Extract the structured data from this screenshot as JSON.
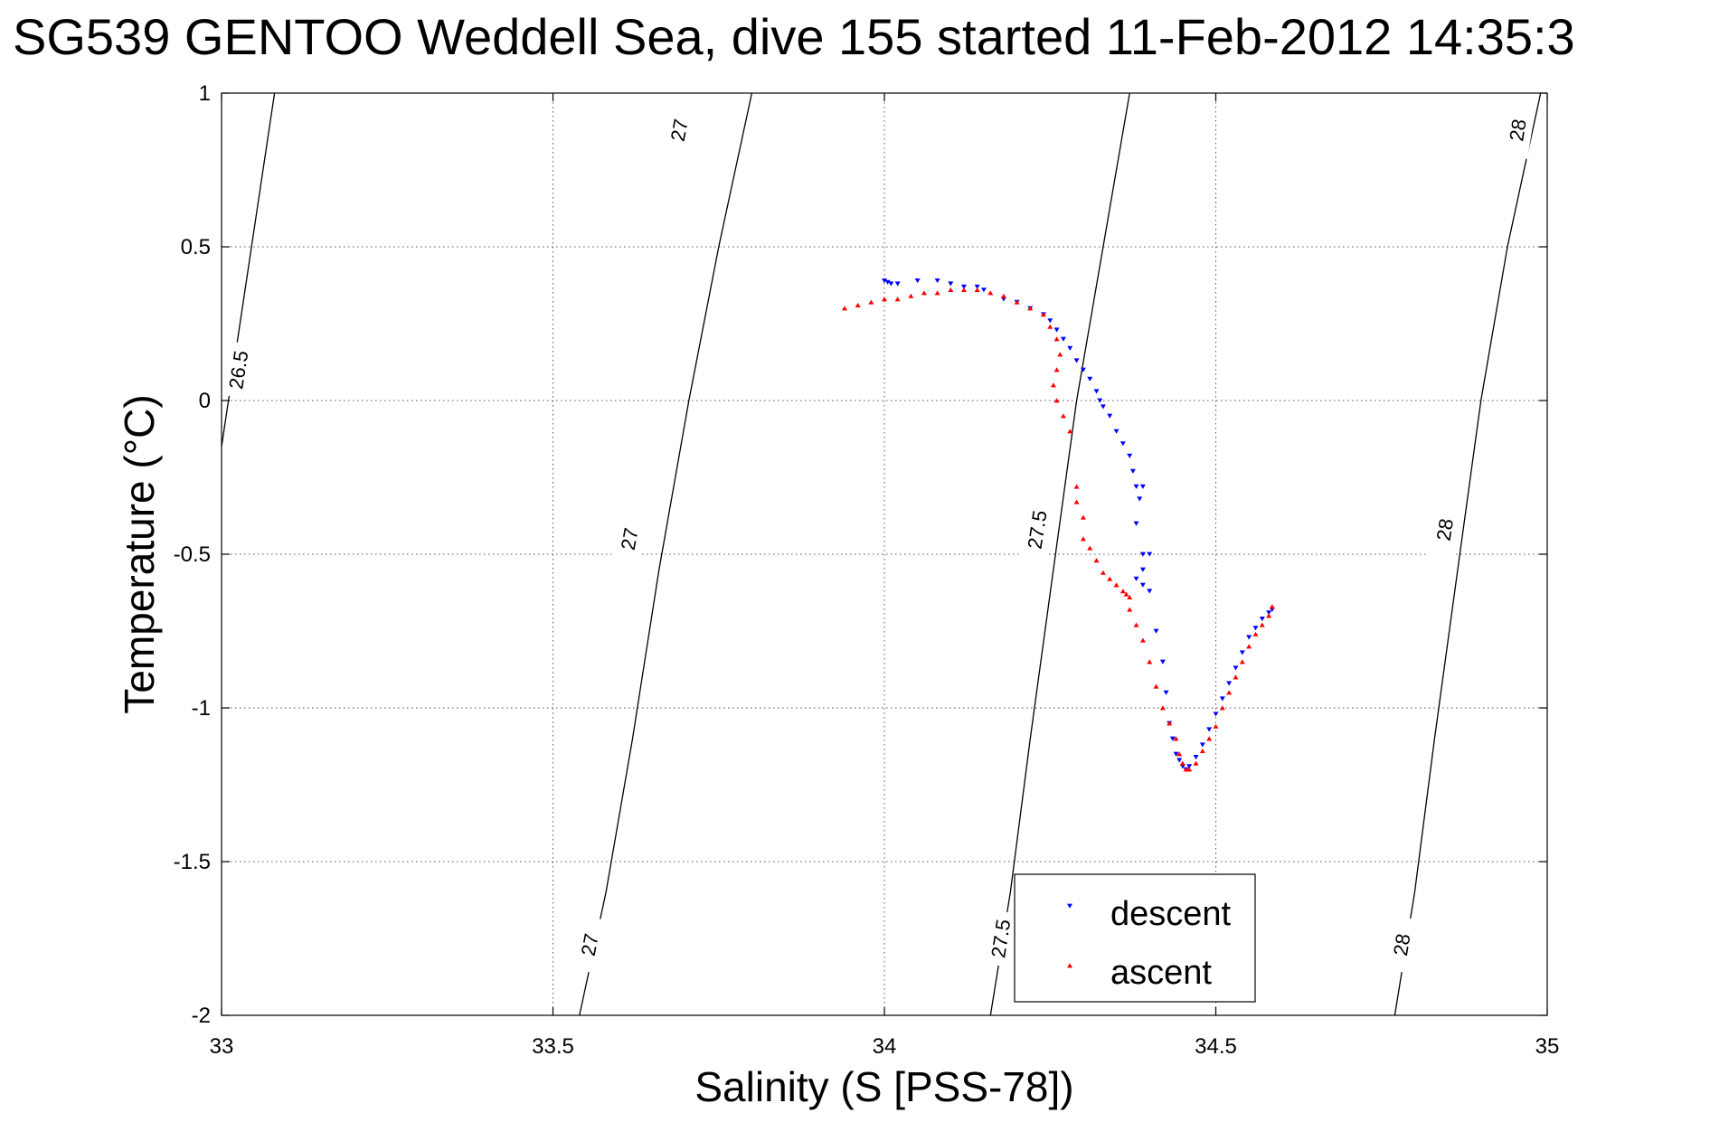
{
  "chart_data": {
    "type": "scatter",
    "title": "SG539 GENTOO Weddell Sea, dive 155 started 11-Feb-2012 14:35:3",
    "xlabel": "Salinity (S [PSS-78])",
    "ylabel": "Temperature (°C)",
    "xlim": [
      33,
      35
    ],
    "ylim": [
      -2,
      1
    ],
    "xticks": [
      33,
      33.5,
      34,
      34.5,
      35
    ],
    "xtick_labels": [
      "33",
      "33.5",
      "34",
      "34.5",
      "35"
    ],
    "yticks": [
      -2,
      -1.5,
      -1,
      -0.5,
      0,
      0.5,
      1
    ],
    "ytick_labels": [
      "-2",
      "-1.5",
      "-1",
      "-0.5",
      "0",
      "0.5",
      "1"
    ],
    "grid": true,
    "legend_position": "bottom-center",
    "contours": [
      {
        "level": "26.5",
        "points": [
          [
            33.0,
            -0.15
          ],
          [
            33.08,
            1.0
          ]
        ],
        "labels": [
          {
            "s": 33.025,
            "t": 0.1
          }
        ]
      },
      {
        "level": "27",
        "points": [
          [
            33.54,
            -2.0
          ],
          [
            33.58,
            -1.6
          ],
          [
            33.62,
            -1.1
          ],
          [
            33.66,
            -0.55
          ],
          [
            33.705,
            0.0
          ],
          [
            33.75,
            0.5
          ],
          [
            33.8,
            1.0
          ]
        ],
        "labels": [
          {
            "s": 33.555,
            "t": -1.77
          },
          {
            "s": 33.615,
            "t": -0.45
          },
          {
            "s": 33.69,
            "t": 0.88
          }
        ]
      },
      {
        "level": "27.5",
        "points": [
          [
            34.16,
            -2.0
          ],
          [
            34.19,
            -1.6
          ],
          [
            34.22,
            -1.1
          ],
          [
            34.255,
            -0.55
          ],
          [
            34.29,
            0.0
          ],
          [
            34.33,
            0.5
          ],
          [
            34.37,
            1.0
          ]
        ],
        "labels": [
          {
            "s": 34.175,
            "t": -1.75
          },
          {
            "s": 34.23,
            "t": -0.42
          }
        ]
      },
      {
        "level": "28",
        "points": [
          [
            34.77,
            -2.0
          ],
          [
            34.8,
            -1.6
          ],
          [
            34.83,
            -1.1
          ],
          [
            34.865,
            -0.55
          ],
          [
            34.9,
            0.0
          ],
          [
            34.94,
            0.5
          ],
          [
            34.99,
            1.0
          ]
        ],
        "labels": [
          {
            "s": 34.78,
            "t": -1.77
          },
          {
            "s": 34.845,
            "t": -0.42
          },
          {
            "s": 34.955,
            "t": 0.88
          }
        ]
      }
    ],
    "series": [
      {
        "name": "descent",
        "color": "#0000ff",
        "marker": "triangle-down",
        "points": [
          [
            34.0,
            0.39
          ],
          [
            34.005,
            0.385
          ],
          [
            34.01,
            0.38
          ],
          [
            34.02,
            0.38
          ],
          [
            34.05,
            0.39
          ],
          [
            34.08,
            0.39
          ],
          [
            34.1,
            0.38
          ],
          [
            34.12,
            0.37
          ],
          [
            34.14,
            0.37
          ],
          [
            34.15,
            0.36
          ],
          [
            34.18,
            0.33
          ],
          [
            34.2,
            0.32
          ],
          [
            34.22,
            0.3
          ],
          [
            34.24,
            0.28
          ],
          [
            34.25,
            0.26
          ],
          [
            34.26,
            0.23
          ],
          [
            34.27,
            0.2
          ],
          [
            34.28,
            0.17
          ],
          [
            34.29,
            0.13
          ],
          [
            34.3,
            0.1
          ],
          [
            34.31,
            0.07
          ],
          [
            34.32,
            0.03
          ],
          [
            34.325,
            0.0
          ],
          [
            34.33,
            -0.02
          ],
          [
            34.34,
            -0.05
          ],
          [
            34.35,
            -0.1
          ],
          [
            34.36,
            -0.14
          ],
          [
            34.37,
            -0.18
          ],
          [
            34.375,
            -0.23
          ],
          [
            34.38,
            -0.28
          ],
          [
            34.385,
            -0.32
          ],
          [
            34.39,
            -0.28
          ],
          [
            34.38,
            -0.4
          ],
          [
            34.39,
            -0.5
          ],
          [
            34.4,
            -0.5
          ],
          [
            34.39,
            -0.55
          ],
          [
            34.38,
            -0.58
          ],
          [
            34.39,
            -0.6
          ],
          [
            34.4,
            -0.62
          ],
          [
            34.41,
            -0.75
          ],
          [
            34.42,
            -0.85
          ],
          [
            34.425,
            -0.95
          ],
          [
            34.43,
            -1.05
          ],
          [
            34.435,
            -1.1
          ],
          [
            34.44,
            -1.15
          ],
          [
            34.445,
            -1.17
          ],
          [
            34.45,
            -1.19
          ],
          [
            34.455,
            -1.2
          ],
          [
            34.46,
            -1.19
          ],
          [
            34.47,
            -1.16
          ],
          [
            34.48,
            -1.12
          ],
          [
            34.49,
            -1.07
          ],
          [
            34.5,
            -1.02
          ],
          [
            34.51,
            -0.97
          ],
          [
            34.52,
            -0.92
          ],
          [
            34.53,
            -0.87
          ],
          [
            34.54,
            -0.82
          ],
          [
            34.55,
            -0.77
          ],
          [
            34.56,
            -0.74
          ],
          [
            34.57,
            -0.71
          ],
          [
            34.58,
            -0.69
          ],
          [
            34.585,
            -0.68
          ]
        ]
      },
      {
        "name": "ascent",
        "color": "#ff0000",
        "marker": "triangle-up",
        "points": [
          [
            33.94,
            0.3
          ],
          [
            33.96,
            0.31
          ],
          [
            33.98,
            0.32
          ],
          [
            34.0,
            0.33
          ],
          [
            34.02,
            0.33
          ],
          [
            34.04,
            0.34
          ],
          [
            34.06,
            0.35
          ],
          [
            34.08,
            0.35
          ],
          [
            34.1,
            0.36
          ],
          [
            34.12,
            0.36
          ],
          [
            34.14,
            0.36
          ],
          [
            34.16,
            0.35
          ],
          [
            34.18,
            0.34
          ],
          [
            34.2,
            0.32
          ],
          [
            34.22,
            0.3
          ],
          [
            34.24,
            0.28
          ],
          [
            34.25,
            0.24
          ],
          [
            34.26,
            0.2
          ],
          [
            34.265,
            0.15
          ],
          [
            34.26,
            0.1
          ],
          [
            34.255,
            0.05
          ],
          [
            34.26,
            0.0
          ],
          [
            34.27,
            -0.05
          ],
          [
            34.28,
            -0.1
          ],
          [
            34.29,
            -0.28
          ],
          [
            34.29,
            -0.33
          ],
          [
            34.3,
            -0.38
          ],
          [
            34.3,
            -0.45
          ],
          [
            34.31,
            -0.48
          ],
          [
            34.32,
            -0.52
          ],
          [
            34.33,
            -0.56
          ],
          [
            34.34,
            -0.58
          ],
          [
            34.35,
            -0.6
          ],
          [
            34.36,
            -0.62
          ],
          [
            34.365,
            -0.63
          ],
          [
            34.37,
            -0.64
          ],
          [
            34.37,
            -0.68
          ],
          [
            34.38,
            -0.73
          ],
          [
            34.39,
            -0.78
          ],
          [
            34.4,
            -0.85
          ],
          [
            34.41,
            -0.93
          ],
          [
            34.42,
            -1.0
          ],
          [
            34.43,
            -1.05
          ],
          [
            34.44,
            -1.1
          ],
          [
            34.445,
            -1.15
          ],
          [
            34.45,
            -1.18
          ],
          [
            34.455,
            -1.2
          ],
          [
            34.46,
            -1.2
          ],
          [
            34.47,
            -1.18
          ],
          [
            34.48,
            -1.14
          ],
          [
            34.49,
            -1.1
          ],
          [
            34.5,
            -1.06
          ],
          [
            34.51,
            -1.0
          ],
          [
            34.52,
            -0.95
          ],
          [
            34.53,
            -0.9
          ],
          [
            34.54,
            -0.85
          ],
          [
            34.55,
            -0.8
          ],
          [
            34.56,
            -0.76
          ],
          [
            34.57,
            -0.73
          ],
          [
            34.58,
            -0.7
          ],
          [
            34.585,
            -0.67
          ]
        ]
      }
    ]
  }
}
